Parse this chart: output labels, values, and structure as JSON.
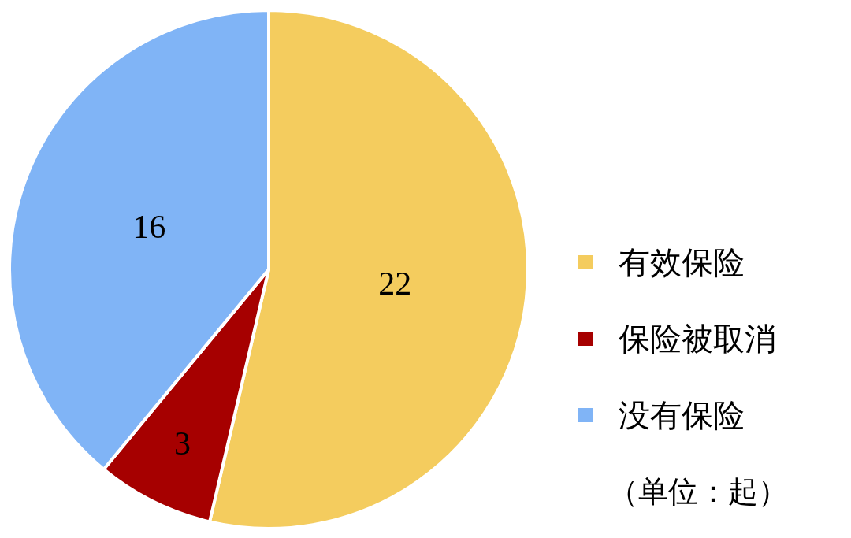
{
  "chart_data": {
    "type": "pie",
    "categories": [
      "有效保险",
      "保险被取消",
      "没有保险"
    ],
    "values": [
      22,
      3,
      16
    ],
    "colors": [
      "#f4cc5e",
      "#a60000",
      "#80b4f6"
    ],
    "data_labels": true,
    "legend": "right",
    "annotations": [
      "（单位：起）"
    ]
  }
}
